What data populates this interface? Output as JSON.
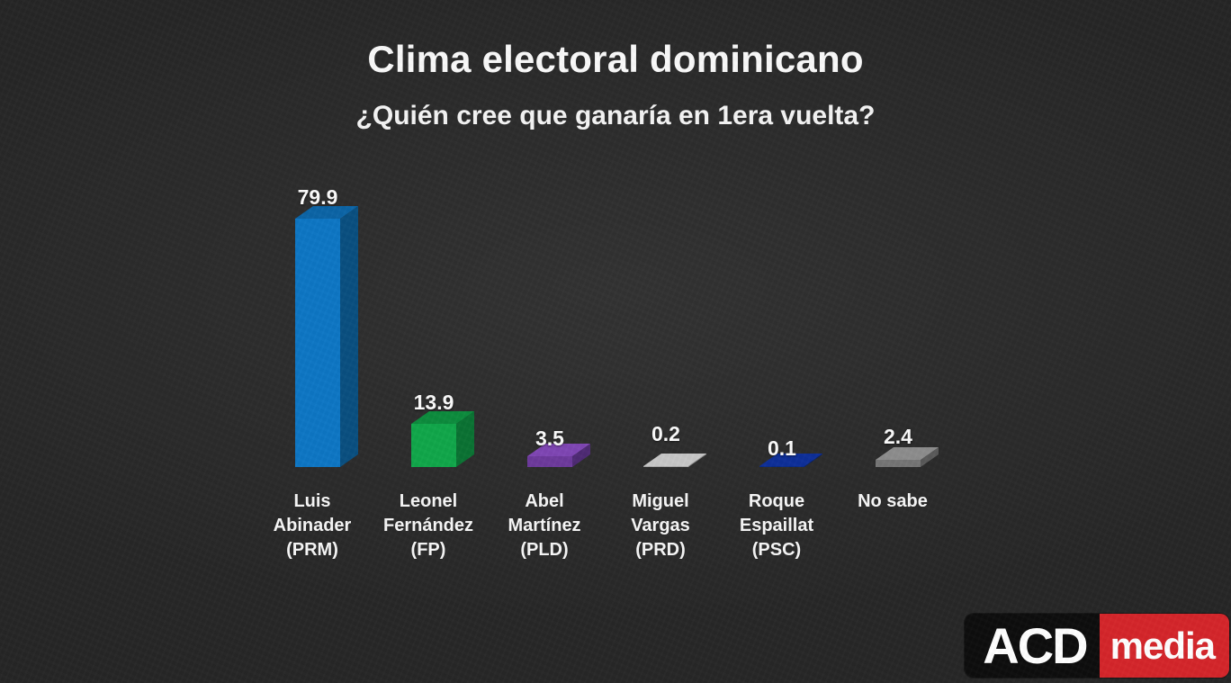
{
  "chart_data": {
    "type": "bar",
    "title": "Clima electoral dominicano",
    "subtitle": "¿Quién cree que ganaría en 1era vuelta?",
    "xlabel": "",
    "ylabel": "",
    "ylim": [
      0,
      80
    ],
    "grid": false,
    "legend": false,
    "style": "3d-bars-on-dark-slide",
    "text_color": "#fafafa",
    "categories": [
      "Luis Abinader (PRM)",
      "Leonel Fernández (FP)",
      "Abel Martínez (PLD)",
      "Miguel Vargas (PRD)",
      "Roque Espaillat (PSC)",
      "No sabe"
    ],
    "values": [
      79.9,
      13.9,
      3.5,
      0.2,
      0.1,
      2.4
    ],
    "bars": [
      {
        "id": "luis-abinader",
        "label_lines": [
          "Luis",
          "Abinader",
          "(PRM)"
        ],
        "value": 79.9,
        "value_label": "79.9",
        "colors": {
          "front": "#0d76c4",
          "top": "#0b64a6",
          "side": "#094f80"
        }
      },
      {
        "id": "leonel-fernandez",
        "label_lines": [
          "Leonel",
          "Fernández",
          "(FP)"
        ],
        "value": 13.9,
        "value_label": "13.9",
        "colors": {
          "front": "#10a74a",
          "top": "#0c8c3d",
          "side": "#0a7233"
        }
      },
      {
        "id": "abel-martinez",
        "label_lines": [
          "Abel",
          "Martínez",
          "(PLD)"
        ],
        "value": 3.5,
        "value_label": "3.5",
        "colors": {
          "front": "#6d3a9c",
          "top": "#7f46b4",
          "side": "#4e2a74"
        }
      },
      {
        "id": "miguel-vargas",
        "label_lines": [
          "Miguel",
          "Vargas",
          "(PRD)"
        ],
        "value": 0.2,
        "value_label": "0.2",
        "colors": {
          "front": "#a9a9a9",
          "top": "#c7c7c7",
          "side": "#8f8f8f"
        }
      },
      {
        "id": "roque-espaillat",
        "label_lines": [
          "Roque",
          "Espaillat",
          "(PSC)"
        ],
        "value": 0.1,
        "value_label": "0.1",
        "colors": {
          "front": "#0a2a85",
          "top": "#0d2f99",
          "side": "#081f66"
        }
      },
      {
        "id": "no-sabe",
        "label_lines": [
          "No sabe"
        ],
        "value": 2.4,
        "value_label": "2.4",
        "colors": {
          "front": "#757575",
          "top": "#8d8d8d",
          "side": "#595959"
        }
      }
    ]
  },
  "logo": {
    "brand": "ACD",
    "suffix": "media",
    "black_bg": "#0d0d0d",
    "red_bg": "#d5252a"
  }
}
